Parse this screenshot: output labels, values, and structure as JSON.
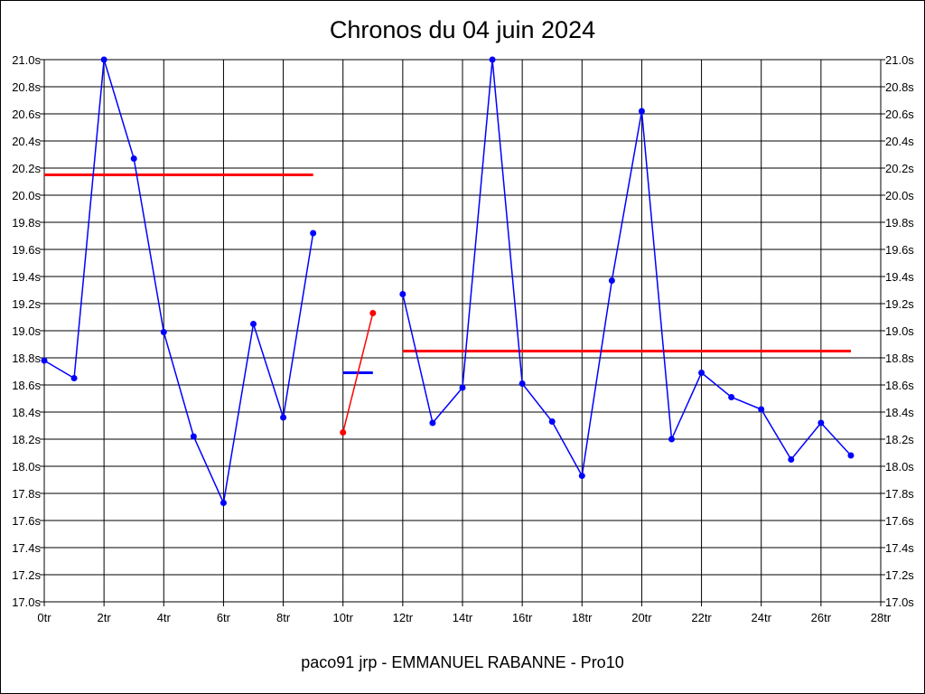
{
  "chart_data": {
    "type": "line",
    "title": "Chronos du 04 juin 2024",
    "footer": "paco91 jrp - EMMANUEL RABANNE - Pro10",
    "xlim": [
      0,
      28
    ],
    "ylim": [
      17.0,
      21.0
    ],
    "x_ticks": [
      0,
      2,
      4,
      6,
      8,
      10,
      12,
      14,
      16,
      18,
      20,
      22,
      24,
      26,
      28
    ],
    "x_tick_labels": [
      "0tr",
      "2tr",
      "4tr",
      "6tr",
      "8tr",
      "10tr",
      "12tr",
      "14tr",
      "16tr",
      "18tr",
      "20tr",
      "22tr",
      "24tr",
      "26tr",
      "28tr"
    ],
    "y_ticks": [
      17.0,
      17.2,
      17.4,
      17.6,
      17.8,
      18.0,
      18.2,
      18.4,
      18.6,
      18.8,
      19.0,
      19.2,
      19.4,
      19.6,
      19.8,
      20.0,
      20.2,
      20.4,
      20.6,
      20.8,
      21.0
    ],
    "y_tick_labels": [
      "17.0s",
      "17.2s",
      "17.4s",
      "17.6s",
      "17.8s",
      "18.0s",
      "18.2s",
      "18.4s",
      "18.6s",
      "18.8s",
      "19.0s",
      "19.2s",
      "19.4s",
      "19.6s",
      "19.8s",
      "20.0s",
      "20.2s",
      "20.4s",
      "20.6s",
      "20.8s",
      "21.0s"
    ],
    "grid": true,
    "series": [
      {
        "color": "#0000ff",
        "x": [
          0,
          1,
          2,
          3,
          4,
          5,
          6,
          7,
          8,
          9
        ],
        "y": [
          18.78,
          18.65,
          21.0,
          20.27,
          18.99,
          18.22,
          17.73,
          19.05,
          18.36,
          19.72
        ]
      },
      {
        "color": "#ff0000",
        "x": [
          10,
          11
        ],
        "y": [
          18.25,
          19.13
        ]
      },
      {
        "color": "#0000ff",
        "x": [
          12,
          13,
          14,
          15,
          16,
          17,
          18,
          19,
          20,
          21,
          22,
          23,
          24,
          25,
          26,
          27
        ],
        "y": [
          19.27,
          18.32,
          18.58,
          21.0,
          18.61,
          18.33,
          17.93,
          19.37,
          20.62,
          18.2,
          18.69,
          18.51,
          18.42,
          18.05,
          18.32,
          18.08
        ]
      }
    ],
    "reference_lines": [
      {
        "color": "#ff0000",
        "x": [
          0,
          9
        ],
        "y": 20.15
      },
      {
        "color": "#0000ff",
        "x": [
          10,
          11
        ],
        "y": 18.69
      },
      {
        "color": "#ff0000",
        "x": [
          12,
          27
        ],
        "y": 18.85
      }
    ]
  }
}
